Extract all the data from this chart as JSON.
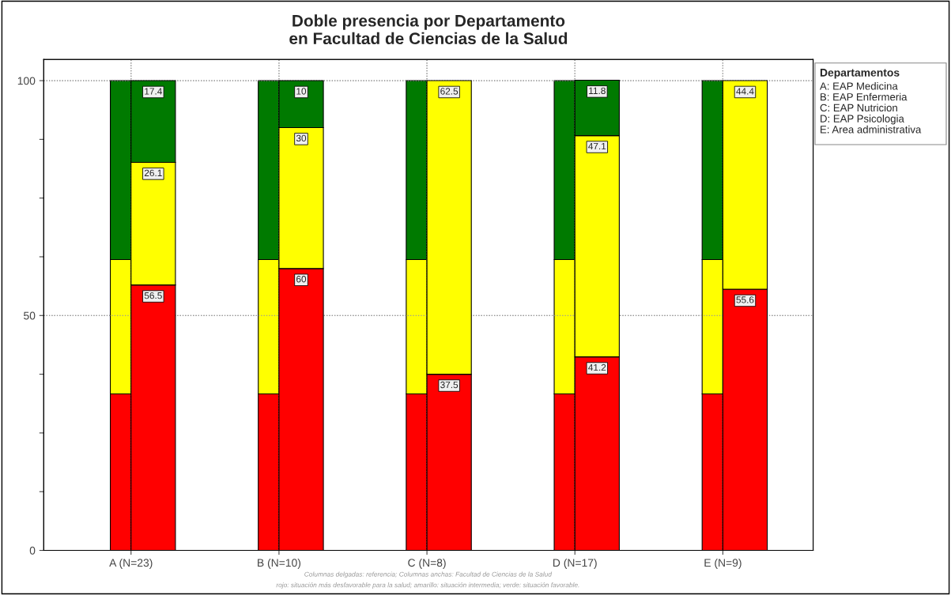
{
  "chart_data": [
    {
      "type": "bar",
      "stacked": true,
      "tick_labels": "y",
      "categories": [
        null,
        null,
        null,
        null,
        null
      ],
      "series": [
        {
          "color": "#ff0000",
          "values": [
            33.3,
            33.3,
            33.3,
            33.3,
            33.3
          ]
        },
        {
          "color": "#ffff00",
          "values": [
            28.6,
            28.6,
            28.6,
            28.6,
            28.6
          ]
        },
        {
          "color": "#007a00",
          "values": [
            38.1,
            38.1,
            38.1,
            38.1,
            38.1
          ]
        }
      ],
      "ylim": [
        0,
        104.5
      ],
      "yticks": [
        0,
        {
          "value": 12.5,
          "label": null
        },
        {
          "value": 25,
          "label": null
        },
        {
          "value": 37.5,
          "label": null
        },
        50,
        {
          "value": 62.5,
          "label": null
        },
        {
          "value": 75,
          "label": null
        },
        {
          "value": 87.5,
          "label": null
        },
        100
      ],
      "grid": true
    },
    {
      "type": "bar",
      "stacked": true,
      "tick_labels": "x",
      "title": "Doble presencia por Departamento\nen Facultad de Ciencias de la Salud",
      "categories": [
        "A (N=23)",
        "B (N=10)",
        "C (N=8)",
        "D (N=17)",
        "E (N=9)"
      ],
      "series": [
        {
          "color": "#ff0000",
          "values": [
            56.5,
            60,
            37.5,
            41.2,
            55.6
          ],
          "value_labels": [
            "56.5",
            "60",
            "37.5",
            "41.2",
            "55.6"
          ]
        },
        {
          "color": "#ffff00",
          "values": [
            26.1,
            30,
            62.5,
            47.1,
            44.4
          ],
          "value_labels": [
            "26.1",
            "30",
            "62.5",
            "47.1",
            "44.4"
          ]
        },
        {
          "color": "#007a00",
          "values": [
            17.4,
            10,
            null,
            11.8,
            null
          ],
          "value_labels": [
            "17.4",
            "10",
            null,
            "11.8",
            null
          ]
        }
      ],
      "ylim": [
        0,
        104.5
      ],
      "yticks": [
        0,
        {
          "value": 12.5,
          "label": null
        },
        {
          "value": 25,
          "label": null
        },
        {
          "value": 37.5,
          "label": null
        },
        50,
        {
          "value": 62.5,
          "label": null
        },
        {
          "value": 75,
          "label": null
        },
        {
          "value": 87.5,
          "label": null
        },
        100
      ],
      "grid": true,
      "legend_title": "Departamentos",
      "annotations": [
        "A: EAP Medicina",
        "B: EAP Enfermeria",
        "C: EAP Nutricion",
        "D: EAP Psicologia",
        "E: Area administrativa",
        "Columnas delgadas: referencia; Columnas anchas: Facultad de Ciencias de la Salud",
        "rojo: situación más desfavorable para la salud; amarillo: situación intermedia; verde: situación favorable."
      ]
    }
  ]
}
